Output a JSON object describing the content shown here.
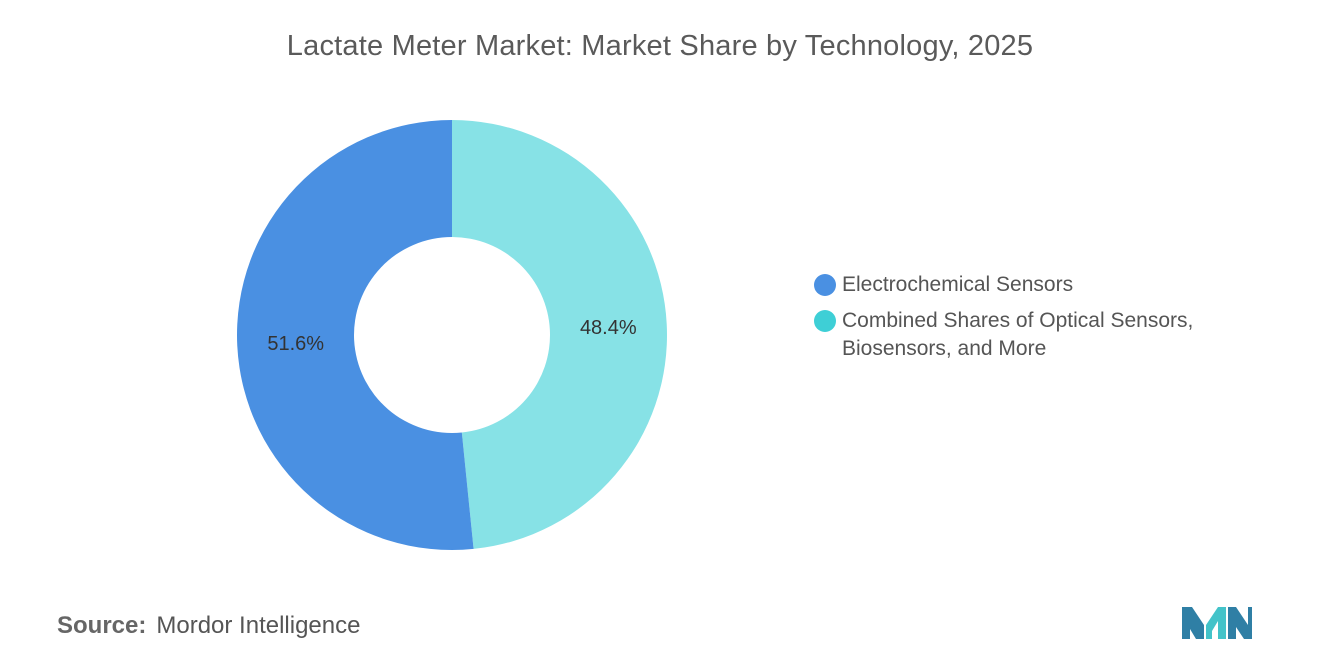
{
  "title": "Lactate Meter Market: Market Share by Technology, 2025",
  "source": {
    "label": "Source:",
    "value": "Mordor Intelligence"
  },
  "chart_data": {
    "type": "pie",
    "donut": true,
    "title": "Lactate Meter Market: Market Share by Technology, 2025",
    "legend_position": "right",
    "series": [
      {
        "name": "Electrochemical Sensors",
        "value": 51.6,
        "label": "51.6%",
        "color": "#4a90e2"
      },
      {
        "name": "Combined Shares of Optical Sensors, Biosensors, and More",
        "value": 48.4,
        "label": "48.4%",
        "color": "#87e2e6"
      }
    ]
  },
  "legend": {
    "items": [
      {
        "label": "Electrochemical Sensors",
        "color": "#4a90e2"
      },
      {
        "label": "Combined Shares of Optical Sensors, Biosensors, and More",
        "color": "#3ecfd6"
      }
    ]
  },
  "logo": {
    "name": "mordor-intelligence-logo",
    "colors": [
      "#2f7fa5",
      "#43c3c9"
    ]
  }
}
